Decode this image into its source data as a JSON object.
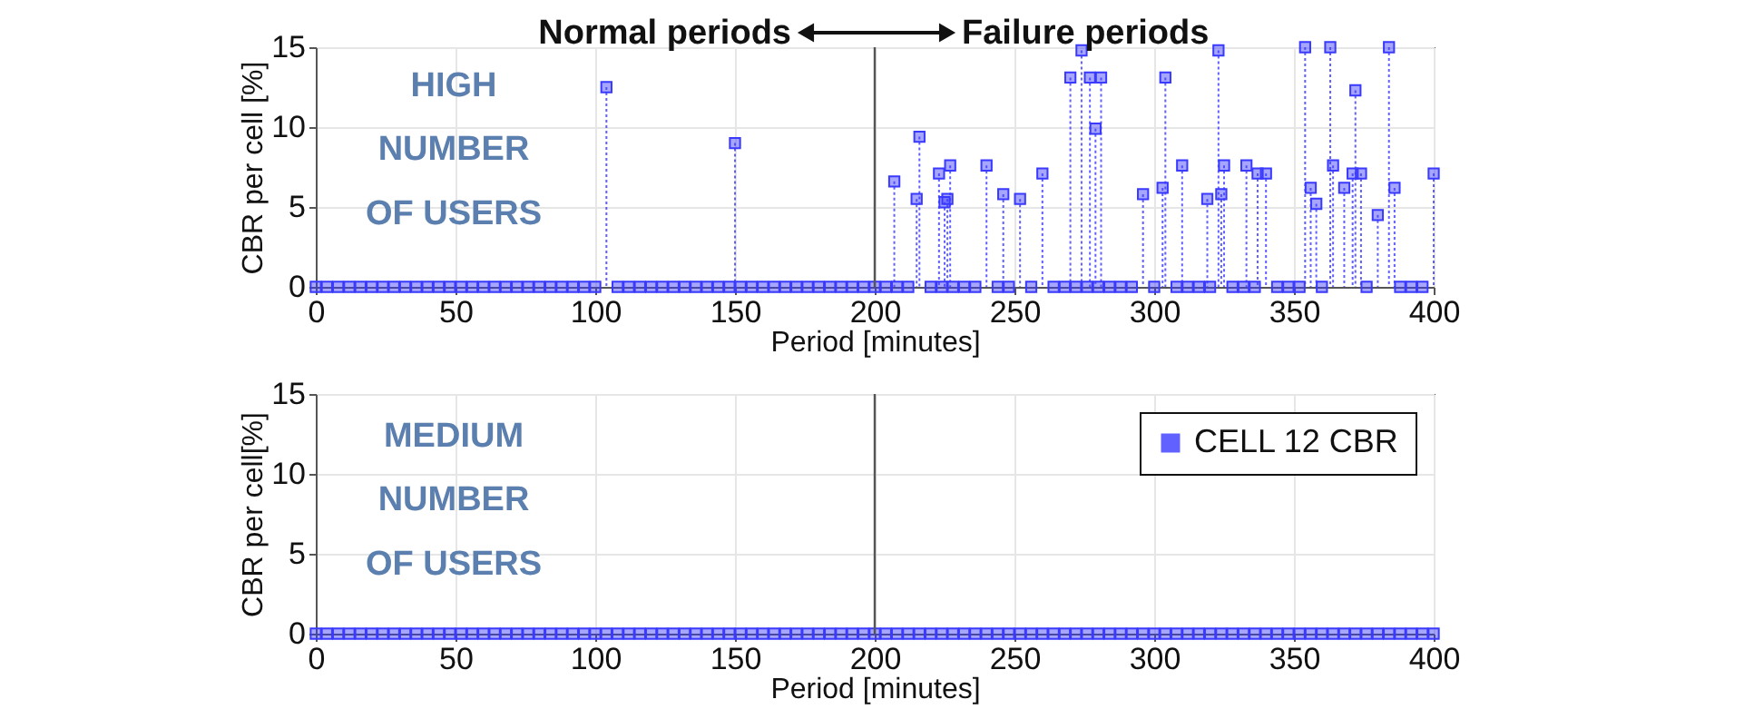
{
  "chart_data": [
    {
      "type": "lollipop",
      "xlabel": "Period [minutes]",
      "ylabel": "CBR per cell [%]",
      "xlim": [
        0,
        400
      ],
      "xticks": [
        0,
        50,
        100,
        150,
        200,
        250,
        300,
        350,
        400
      ],
      "ylim": [
        0,
        15
      ],
      "yticks": [
        0,
        5,
        10,
        15
      ],
      "grid": true,
      "legend": false,
      "marker": "square",
      "line_style": "dotted",
      "annotations": [
        "Normal periods",
        "Failure periods",
        "HIGH\nNUMBER\nOF USERS"
      ],
      "ref_lines": [
        {
          "axis": "x",
          "value": 200,
          "color": "#555555"
        }
      ],
      "series": [
        {
          "color": "#3a3aff",
          "x": [
            0,
            4,
            8,
            12,
            16,
            20,
            24,
            28,
            32,
            36,
            40,
            44,
            48,
            52,
            56,
            60,
            64,
            68,
            72,
            76,
            80,
            84,
            88,
            92,
            96,
            100,
            104,
            108,
            112,
            116,
            120,
            124,
            128,
            132,
            136,
            140,
            144,
            148,
            150,
            152,
            156,
            160,
            164,
            168,
            172,
            176,
            180,
            184,
            188,
            192,
            196,
            200,
            204,
            207,
            208,
            212,
            215,
            216,
            220,
            223,
            224,
            225,
            226,
            227,
            228,
            232,
            236,
            240,
            244,
            246,
            248,
            252,
            256,
            260,
            264,
            268,
            270,
            272,
            274,
            276,
            277,
            279,
            280,
            281,
            284,
            288,
            292,
            296,
            300,
            303,
            304,
            308,
            310,
            312,
            316,
            319,
            320,
            323,
            324,
            325,
            328,
            332,
            333,
            336,
            337,
            340,
            344,
            348,
            352,
            354,
            356,
            358,
            360,
            363,
            364,
            368,
            371,
            372,
            374,
            376,
            380,
            384,
            386,
            388,
            392,
            396,
            400
          ],
          "values": [
            0,
            0,
            0,
            0,
            0,
            0,
            0,
            0,
            0,
            0,
            0,
            0,
            0,
            0,
            0,
            0,
            0,
            0,
            0,
            0,
            0,
            0,
            0,
            0,
            0,
            0,
            12.5,
            0,
            0,
            0,
            0,
            0,
            0,
            0,
            0,
            0,
            0,
            0,
            9.0,
            0,
            0,
            0,
            0,
            0,
            0,
            0,
            0,
            0,
            0,
            0,
            0,
            0,
            0,
            6.6,
            0,
            0,
            5.5,
            9.4,
            0,
            7.1,
            0,
            5.3,
            5.5,
            7.6,
            0,
            0,
            0,
            7.6,
            0,
            5.8,
            0,
            5.5,
            0,
            7.1,
            0,
            0,
            13.1,
            0,
            14.8,
            0,
            13.1,
            9.9,
            0,
            13.1,
            0,
            0,
            0,
            5.8,
            0,
            6.2,
            13.1,
            0,
            7.6,
            0,
            0,
            5.5,
            0,
            14.8,
            5.8,
            7.6,
            0,
            0,
            7.6,
            0,
            7.1,
            7.1,
            0,
            0,
            0,
            15,
            6.2,
            5.2,
            0,
            15,
            7.6,
            6.2,
            7.1,
            12.3,
            7.1,
            0,
            4.5,
            15,
            6.2,
            0,
            0,
            0,
            7.1
          ]
        }
      ]
    },
    {
      "type": "lollipop",
      "xlabel": "Period [minutes]",
      "ylabel": "CBR per cell[%]",
      "xlim": [
        0,
        400
      ],
      "xticks": [
        0,
        50,
        100,
        150,
        200,
        250,
        300,
        350,
        400
      ],
      "ylim": [
        0,
        15
      ],
      "yticks": [
        0,
        5,
        10,
        15
      ],
      "grid": true,
      "legend": "top right",
      "marker": "square",
      "line_style": "dotted",
      "annotations": [
        "MEDIUM\nNUMBER\nOF USERS"
      ],
      "ref_lines": [
        {
          "axis": "x",
          "value": 200,
          "color": "#555555"
        }
      ],
      "series": [
        {
          "name": "CELL 12 CBR",
          "color": "#3a3aff",
          "x": [
            0,
            4,
            8,
            12,
            16,
            20,
            24,
            28,
            32,
            36,
            40,
            44,
            48,
            52,
            56,
            60,
            64,
            68,
            72,
            76,
            80,
            84,
            88,
            92,
            96,
            100,
            104,
            108,
            112,
            116,
            120,
            124,
            128,
            132,
            136,
            140,
            144,
            148,
            152,
            156,
            160,
            164,
            168,
            172,
            176,
            180,
            184,
            188,
            192,
            196,
            200,
            204,
            208,
            212,
            216,
            220,
            224,
            228,
            232,
            236,
            240,
            244,
            248,
            252,
            256,
            260,
            264,
            268,
            272,
            276,
            280,
            284,
            288,
            292,
            296,
            300,
            304,
            308,
            312,
            316,
            320,
            324,
            328,
            332,
            336,
            340,
            344,
            348,
            352,
            356,
            360,
            364,
            368,
            372,
            376,
            380,
            384,
            388,
            392,
            396,
            400
          ],
          "values": [
            0,
            0,
            0,
            0,
            0,
            0,
            0,
            0,
            0,
            0,
            0,
            0,
            0,
            0,
            0,
            0,
            0,
            0,
            0,
            0,
            0,
            0,
            0,
            0,
            0,
            0,
            0,
            0,
            0,
            0,
            0,
            0,
            0,
            0,
            0,
            0,
            0,
            0,
            0,
            0,
            0,
            0,
            0,
            0,
            0,
            0,
            0,
            0,
            0,
            0,
            0,
            0,
            0,
            0,
            0,
            0,
            0,
            0,
            0,
            0,
            0,
            0,
            0,
            0,
            0,
            0,
            0,
            0,
            0,
            0,
            0,
            0,
            0,
            0,
            0,
            0,
            0,
            0,
            0,
            0,
            0,
            0,
            0,
            0,
            0,
            0,
            0,
            0,
            0,
            0,
            0,
            0,
            0,
            0,
            0,
            0,
            0,
            0,
            0,
            0,
            0
          ]
        }
      ]
    }
  ]
}
